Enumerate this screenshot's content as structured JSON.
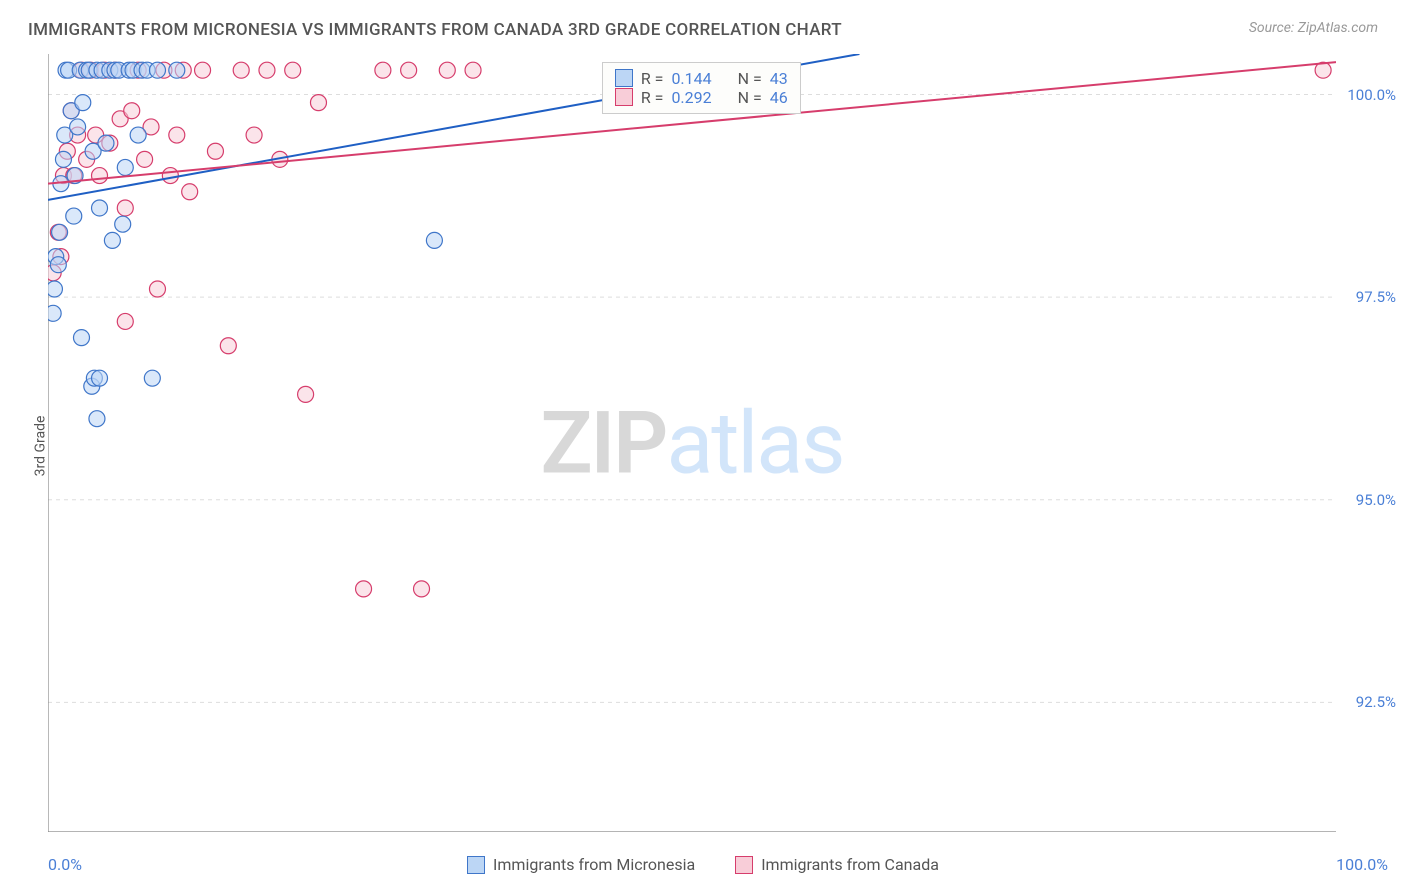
{
  "title": "IMMIGRANTS FROM MICRONESIA VS IMMIGRANTS FROM CANADA 3RD GRADE CORRELATION CHART",
  "source": "Source: ZipAtlas.com",
  "watermark": {
    "zip": "ZIP",
    "atlas": "atlas"
  },
  "y_axis_label": "3rd Grade",
  "chart": {
    "type": "scatter",
    "x_domain": [
      0,
      100
    ],
    "y_domain": [
      90.9,
      100.5
    ],
    "x_ticks": [
      0,
      12.5,
      25,
      37.5,
      50,
      62.5,
      75,
      87.5,
      100
    ],
    "x_first_label": "0.0%",
    "x_last_label": "100.0%",
    "y_ticks": [
      {
        "v": 92.5,
        "label": "92.5%"
      },
      {
        "v": 95.0,
        "label": "95.0%"
      },
      {
        "v": 97.5,
        "label": "97.5%"
      },
      {
        "v": 100.0,
        "label": "100.0%"
      }
    ],
    "grid_color": "#dddddd",
    "axis_color": "#888888",
    "background": "#ffffff",
    "marker_radius": 8,
    "marker_stroke_width": 1.2,
    "line_width": 2,
    "series": [
      {
        "name": "Immigrants from Micronesia",
        "fill": "#bcd6f5",
        "stroke": "#3f76c9",
        "line_color": "#1f5fc4",
        "r_label": "R =",
        "r_value": "0.144",
        "n_label": "N =",
        "n_value": "43",
        "trend": {
          "x1": 0,
          "y1": 98.7,
          "x2": 63,
          "y2": 100.5
        },
        "points": [
          [
            0.4,
            97.3
          ],
          [
            0.5,
            97.6
          ],
          [
            0.6,
            98.0
          ],
          [
            0.8,
            97.9
          ],
          [
            0.9,
            98.3
          ],
          [
            1.0,
            98.9
          ],
          [
            1.2,
            99.2
          ],
          [
            1.3,
            99.5
          ],
          [
            1.4,
            100.3
          ],
          [
            1.6,
            100.3
          ],
          [
            1.8,
            99.8
          ],
          [
            2.0,
            98.5
          ],
          [
            2.1,
            99.0
          ],
          [
            2.3,
            99.6
          ],
          [
            2.5,
            100.3
          ],
          [
            2.7,
            99.9
          ],
          [
            3.0,
            100.3
          ],
          [
            3.2,
            100.3
          ],
          [
            3.5,
            99.3
          ],
          [
            3.8,
            100.3
          ],
          [
            4.0,
            98.6
          ],
          [
            4.2,
            100.3
          ],
          [
            4.5,
            99.4
          ],
          [
            4.8,
            100.3
          ],
          [
            5.0,
            98.2
          ],
          [
            5.2,
            100.3
          ],
          [
            5.5,
            100.3
          ],
          [
            5.8,
            98.4
          ],
          [
            6.0,
            99.1
          ],
          [
            6.3,
            100.3
          ],
          [
            6.6,
            100.3
          ],
          [
            7.0,
            99.5
          ],
          [
            7.3,
            100.3
          ],
          [
            7.7,
            100.3
          ],
          [
            8.1,
            96.5
          ],
          [
            8.5,
            100.3
          ],
          [
            3.4,
            96.4
          ],
          [
            3.6,
            96.5
          ],
          [
            4.0,
            96.5
          ],
          [
            3.8,
            96.0
          ],
          [
            2.6,
            97.0
          ],
          [
            30.0,
            98.2
          ],
          [
            10.0,
            100.3
          ]
        ]
      },
      {
        "name": "Immigrants from Canada",
        "fill": "#f8cdd8",
        "stroke": "#d63d6c",
        "line_color": "#d63d6c",
        "r_label": "R =",
        "r_value": "0.292",
        "n_label": "N =",
        "n_value": "46",
        "trend": {
          "x1": 0,
          "y1": 98.9,
          "x2": 100,
          "y2": 100.4
        },
        "points": [
          [
            0.4,
            97.8
          ],
          [
            0.8,
            98.3
          ],
          [
            1.0,
            98.0
          ],
          [
            1.2,
            99.0
          ],
          [
            1.5,
            99.3
          ],
          [
            1.8,
            99.8
          ],
          [
            2.0,
            99.0
          ],
          [
            2.3,
            99.5
          ],
          [
            2.6,
            100.3
          ],
          [
            3.0,
            99.2
          ],
          [
            3.3,
            100.3
          ],
          [
            3.7,
            99.5
          ],
          [
            4.0,
            99.0
          ],
          [
            4.4,
            100.3
          ],
          [
            4.8,
            99.4
          ],
          [
            5.2,
            100.3
          ],
          [
            5.6,
            99.7
          ],
          [
            6.0,
            98.6
          ],
          [
            6.5,
            99.8
          ],
          [
            7.0,
            100.3
          ],
          [
            7.5,
            99.2
          ],
          [
            8.0,
            99.6
          ],
          [
            8.5,
            97.6
          ],
          [
            9.0,
            100.3
          ],
          [
            9.5,
            99.0
          ],
          [
            10.0,
            99.5
          ],
          [
            10.5,
            100.3
          ],
          [
            11.0,
            98.8
          ],
          [
            12.0,
            100.3
          ],
          [
            13.0,
            99.3
          ],
          [
            14.0,
            96.9
          ],
          [
            15.0,
            100.3
          ],
          [
            16.0,
            99.5
          ],
          [
            17.0,
            100.3
          ],
          [
            18.0,
            99.2
          ],
          [
            19.0,
            100.3
          ],
          [
            20.0,
            96.3
          ],
          [
            21.0,
            99.9
          ],
          [
            26.0,
            100.3
          ],
          [
            28.0,
            100.3
          ],
          [
            31.0,
            100.3
          ],
          [
            33.0,
            100.3
          ],
          [
            24.5,
            93.9
          ],
          [
            29.0,
            93.9
          ],
          [
            99.0,
            100.3
          ],
          [
            6.0,
            97.2
          ]
        ]
      }
    ]
  },
  "stats_box": {
    "left_pct": 43,
    "top_pct": 1
  }
}
